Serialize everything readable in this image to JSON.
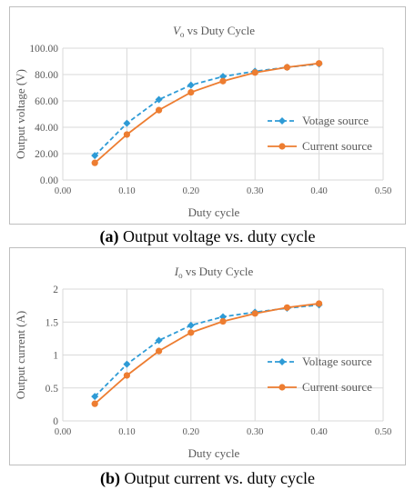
{
  "colors": {
    "voltage_series": "#2E9BD6",
    "current_series": "#ED7D31",
    "grid": "#d9d9d9",
    "text": "#595959"
  },
  "chart_data": [
    {
      "type": "line",
      "title": "V",
      "title_subscript": "o",
      "title_rest": " vs Duty Cycle",
      "xlabel": "Duty cycle",
      "ylabel": "Output voltage (V)",
      "xlim": [
        0,
        0.5
      ],
      "ylim": [
        0,
        100
      ],
      "xticks": [
        "0.00",
        "0.10",
        "0.20",
        "0.30",
        "0.40",
        "0.50"
      ],
      "yticks": [
        "0.00",
        "20.00",
        "40.00",
        "60.00",
        "80.00",
        "100.00"
      ],
      "grid": true,
      "legend_position": "right",
      "series": [
        {
          "name": "Votage source",
          "style": "dashed-diamond",
          "x": [
            0.05,
            0.1,
            0.15,
            0.2,
            0.25,
            0.3,
            0.35,
            0.4
          ],
          "y": [
            18.5,
            43,
            61,
            72,
            78.5,
            82.5,
            85.5,
            88
          ]
        },
        {
          "name": "Current source",
          "style": "solid-circle",
          "x": [
            0.05,
            0.1,
            0.15,
            0.2,
            0.25,
            0.3,
            0.35,
            0.4
          ],
          "y": [
            13,
            34.5,
            53,
            66.5,
            75,
            81.5,
            85.5,
            88.5
          ]
        }
      ]
    },
    {
      "type": "line",
      "title": "I",
      "title_subscript": "o",
      "title_rest": " vs Duty Cycle",
      "xlabel": "Duty cycle",
      "ylabel": "Output current (A)",
      "xlim": [
        0,
        0.5
      ],
      "ylim": [
        0,
        2
      ],
      "xticks": [
        "0.00",
        "0.10",
        "0.20",
        "0.30",
        "0.40",
        "0.50"
      ],
      "yticks": [
        "0",
        "0.5",
        "1",
        "1.5",
        "2"
      ],
      "grid": true,
      "legend_position": "right",
      "series": [
        {
          "name": "Voltage source",
          "style": "dashed-diamond",
          "x": [
            0.05,
            0.1,
            0.15,
            0.2,
            0.25,
            0.3,
            0.35,
            0.4
          ],
          "y": [
            0.37,
            0.86,
            1.22,
            1.45,
            1.58,
            1.65,
            1.71,
            1.76
          ]
        },
        {
          "name": "Current source",
          "style": "solid-circle",
          "x": [
            0.05,
            0.1,
            0.15,
            0.2,
            0.25,
            0.3,
            0.35,
            0.4
          ],
          "y": [
            0.26,
            0.69,
            1.06,
            1.34,
            1.51,
            1.63,
            1.72,
            1.78
          ]
        }
      ]
    }
  ],
  "captions": [
    {
      "label": "(a)",
      "text": " Output voltage vs. duty cycle"
    },
    {
      "label": "(b)",
      "text": " Output current vs. duty cycle"
    }
  ]
}
